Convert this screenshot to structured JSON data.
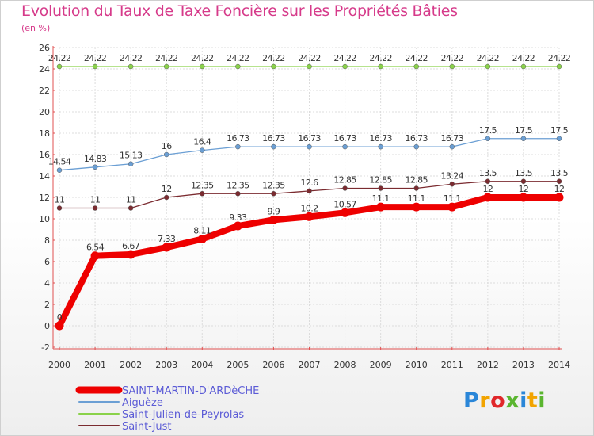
{
  "title": "Evolution du Taux de Taxe Foncière sur les Propriétés Bâties",
  "unit_label": "(en %)",
  "logo": {
    "letters": [
      "P",
      "r",
      "o",
      "x",
      "i",
      "t",
      "i"
    ],
    "colors": [
      "#2a86d8",
      "#f2a400",
      "#e0272a",
      "#5ab52f",
      "#2a86d8",
      "#f2a400",
      "#5ab52f"
    ]
  },
  "chart_data": {
    "type": "line",
    "x": [
      "2000",
      "2001",
      "2002",
      "2003",
      "2004",
      "2005",
      "2006",
      "2007",
      "2008",
      "2009",
      "2010",
      "2011",
      "2012",
      "2013",
      "2014"
    ],
    "ylim": [
      -2,
      26
    ],
    "yticks": [
      "-2",
      "0",
      "2",
      "4",
      "6",
      "8",
      "10",
      "12",
      "14",
      "16",
      "18",
      "20",
      "22",
      "24",
      "26"
    ],
    "grid": true,
    "legend_position": "bottom-left",
    "series": [
      {
        "name": "Saint-Julien-de-Peyrolas",
        "color": "#8ad24a",
        "values": [
          24.22,
          24.22,
          24.22,
          24.22,
          24.22,
          24.22,
          24.22,
          24.22,
          24.22,
          24.22,
          24.22,
          24.22,
          24.22,
          24.22,
          24.22
        ],
        "labels": [
          "24.22",
          "24.22",
          "24.22",
          "24.22",
          "24.22",
          "24.22",
          "24.22",
          "24.22",
          "24.22",
          "24.22",
          "24.22",
          "24.22",
          "24.22",
          "24.22",
          "24.22"
        ]
      },
      {
        "name": "Aiguèze",
        "color": "#6b9fd4",
        "values": [
          14.54,
          14.83,
          15.13,
          16,
          16.4,
          16.73,
          16.73,
          16.73,
          16.73,
          16.73,
          16.73,
          16.73,
          17.5,
          17.5,
          17.5
        ],
        "labels": [
          "14.54",
          "14.83",
          "15.13",
          "16",
          "16.4",
          "16.73",
          "16.73",
          "16.73",
          "16.73",
          "16.73",
          "16.73",
          "16.73",
          "17.5",
          "17.5",
          "17.5"
        ]
      },
      {
        "name": "Saint-Just",
        "color": "#7b2b30",
        "values": [
          11,
          11,
          11,
          12,
          12.35,
          12.35,
          12.35,
          12.6,
          12.85,
          12.85,
          12.85,
          13.24,
          13.5,
          13.5,
          13.5
        ],
        "labels": [
          "11",
          "11",
          "11",
          "12",
          "12.35",
          "12.35",
          "12.35",
          "12.6",
          "12.85",
          "12.85",
          "12.85",
          "13.24",
          "13.5",
          "13.5",
          "13.5"
        ]
      },
      {
        "name": "SAINT-MARTIN-D'ARDèCHE",
        "color": "#ee0000",
        "values": [
          0,
          6.54,
          6.67,
          7.33,
          8.11,
          9.33,
          9.9,
          10.2,
          10.57,
          11.1,
          11.1,
          11.1,
          12,
          12,
          12
        ],
        "labels": [
          "0",
          "6.54",
          "6.67",
          "7.33",
          "8.11",
          "9.33",
          "9.9",
          "10.2",
          "10.57",
          "11.1",
          "11.1",
          "11.1",
          "12",
          "12",
          "12"
        ]
      }
    ],
    "legend": [
      "SAINT-MARTIN-D'ARDèCHE",
      "Aiguèze",
      "Saint-Julien-de-Peyrolas",
      "Saint-Just"
    ]
  }
}
